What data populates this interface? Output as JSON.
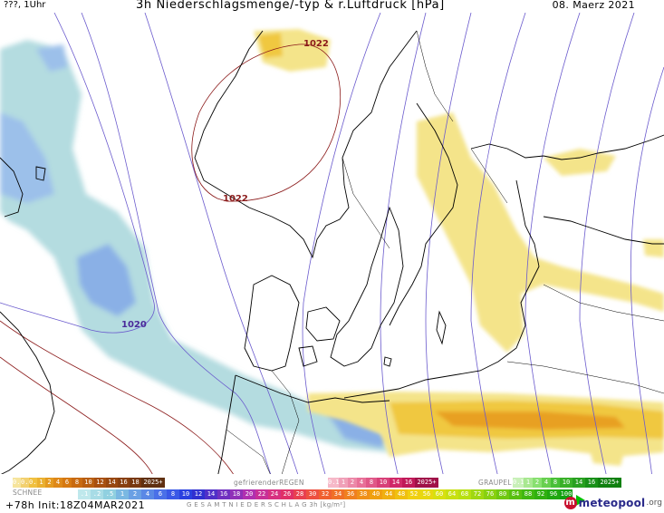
{
  "header": {
    "left": "???, 1Uhr",
    "title": "3h Niederschlagsmenge/-typ & r.Luftdruck [hPa]",
    "date": "08. Maerz 2021"
  },
  "map": {
    "isobar_labels": [
      "1022",
      "1022",
      "1020"
    ],
    "colors": {
      "rain_light": "#f4e48a",
      "rain_mid": "#f0c840",
      "rain_strong": "#e8a020",
      "snow_light": "#b4dce0",
      "snow_mid": "#8ab0e6",
      "snow_strong": "#7090e0",
      "isobar": "#6a5acd",
      "isobar_high": "#8b1a1a",
      "coast": "#000000"
    }
  },
  "legend": {
    "rain_values": [
      "0.1",
      "0.2",
      "0.5",
      "1",
      "2",
      "4",
      "6",
      "8",
      "10",
      "12",
      "14",
      "16",
      "18",
      "2025+"
    ],
    "freezing_rain_label": "gefrierenderREGEN",
    "freezing_rain_values": [
      "0.1",
      "1",
      "2",
      "4",
      "8",
      "10",
      "14",
      "16",
      "2025+"
    ],
    "graupel_label": "GRAUPEL",
    "graupel_values": [
      "0.1",
      "1",
      "2",
      "4",
      "8",
      "10",
      "14",
      "16",
      "2025+"
    ],
    "snow_label": "SCHNEE",
    "total_values": [
      ".1",
      ".2",
      ".5",
      "1",
      "2",
      "4",
      "6",
      "8",
      "10",
      "12",
      "14",
      "16",
      "18",
      "20",
      "22",
      "24",
      "26",
      "28",
      "30",
      "32",
      "34",
      "36",
      "38",
      "40",
      "44",
      "48",
      "52",
      "56",
      "60",
      "64",
      "68",
      "72",
      "76",
      "80",
      "84",
      "88",
      "92",
      "96",
      "100"
    ],
    "total_caption": "G E S A M T N I E D E R S C H L A G   3h   [kg/m²]",
    "footer": "+78h Init:18Z04MAR2021",
    "logo_text": "meteopool",
    "logo_tld": ".org"
  }
}
